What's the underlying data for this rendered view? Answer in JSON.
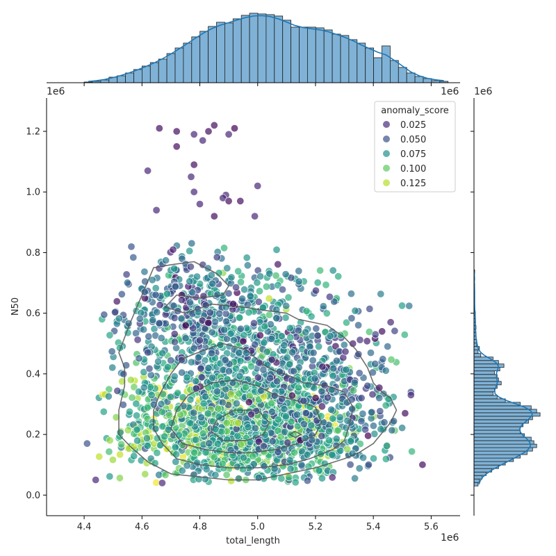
{
  "chart_data": {
    "type": "scatter",
    "x": {
      "label": "total_length",
      "offset_text": "1e6",
      "ticks": [
        4.4,
        4.6,
        4.8,
        5.0,
        5.2,
        5.4,
        5.6
      ],
      "tick_labels": [
        "4.4",
        "4.6",
        "4.8",
        "5.0",
        "5.2",
        "5.4",
        "5.6"
      ],
      "range": [
        4.27,
        5.7
      ]
    },
    "y": {
      "label": "N50",
      "offset_text": "1e6",
      "ticks": [
        0.0,
        0.2,
        0.4,
        0.6,
        0.8,
        1.0,
        1.2
      ],
      "tick_labels": [
        "0.0",
        "0.2",
        "0.4",
        "0.6",
        "0.8",
        "1.0",
        "1.2"
      ],
      "range": [
        -0.068,
        1.31
      ]
    },
    "marginal_x_offset_text": "1e6",
    "marginal_y_offset_text": "1e6",
    "legend": {
      "title": "anomaly_score",
      "placement": "top-right",
      "entries": [
        {
          "label": "0.025",
          "color": "#472d7b"
        },
        {
          "label": "0.050",
          "color": "#3b528b"
        },
        {
          "label": "0.075",
          "color": "#21918c"
        },
        {
          "label": "0.100",
          "color": "#5ec962"
        },
        {
          "label": "0.125",
          "color": "#b5de2b"
        }
      ]
    },
    "hue_range": [
      0.005,
      0.14
    ],
    "colors": {
      "hist_fill": "#7fb2d6",
      "hist_edge": "#1f1f1f",
      "kde_line": "#1f77b4",
      "contour": "#555555"
    },
    "marginal_x_hist": {
      "bin_start": 4.4,
      "bin_width": 0.0286,
      "relative_heights": [
        0.01,
        0.02,
        0.04,
        0.08,
        0.1,
        0.14,
        0.19,
        0.24,
        0.29,
        0.34,
        0.42,
        0.5,
        0.57,
        0.66,
        0.74,
        0.81,
        0.87,
        0.86,
        0.92,
        0.97,
        1.0,
        0.99,
        0.98,
        0.96,
        0.9,
        0.8,
        0.8,
        0.8,
        0.79,
        0.76,
        0.7,
        0.68,
        0.62,
        0.57,
        0.5,
        0.36,
        0.53,
        0.32,
        0.22,
        0.14,
        0.09,
        0.06,
        0.03,
        0.02
      ]
    },
    "marginal_y_hist": {
      "bin_start": 0.03,
      "bin_width": 0.0115,
      "relative_heights": [
        0.06,
        0.08,
        0.12,
        0.18,
        0.26,
        0.36,
        0.46,
        0.58,
        0.68,
        0.78,
        0.86,
        0.92,
        0.88,
        0.84,
        0.74,
        0.68,
        0.68,
        0.72,
        0.8,
        0.86,
        0.97,
        0.92,
        0.84,
        0.68,
        0.46,
        0.34,
        0.28,
        0.3,
        0.34,
        0.4,
        0.36,
        0.34,
        0.3,
        0.38,
        0.44,
        0.36,
        0.28,
        0.1,
        0.06,
        0.08,
        0.04,
        0.04,
        0.03,
        0.03,
        0.02,
        0.03,
        0.02,
        0.02,
        0.02,
        0.02,
        0.01,
        0.01,
        0.01,
        0.01,
        0.01,
        0.01,
        0.01,
        0.01,
        0.0,
        0.01,
        0.0,
        0.01
      ]
    },
    "outlier_points": [
      {
        "x": 4.66,
        "y": 1.21,
        "s": 0.01
      },
      {
        "x": 4.72,
        "y": 1.2,
        "s": 0.01
      },
      {
        "x": 4.78,
        "y": 1.19,
        "s": 0.02
      },
      {
        "x": 4.81,
        "y": 1.17,
        "s": 0.02
      },
      {
        "x": 4.83,
        "y": 1.2,
        "s": 0.01
      },
      {
        "x": 4.85,
        "y": 1.22,
        "s": 0.01
      },
      {
        "x": 4.9,
        "y": 1.19,
        "s": 0.02
      },
      {
        "x": 4.92,
        "y": 1.21,
        "s": 0.005
      },
      {
        "x": 4.72,
        "y": 1.15,
        "s": 0.01
      },
      {
        "x": 4.62,
        "y": 1.07,
        "s": 0.02
      },
      {
        "x": 4.78,
        "y": 1.09,
        "s": 0.01
      },
      {
        "x": 4.77,
        "y": 1.05,
        "s": 0.02
      },
      {
        "x": 4.78,
        "y": 1.0,
        "s": 0.02
      },
      {
        "x": 4.89,
        "y": 0.99,
        "s": 0.02
      },
      {
        "x": 4.88,
        "y": 0.98,
        "s": 0.02
      },
      {
        "x": 4.9,
        "y": 0.97,
        "s": 0.01
      },
      {
        "x": 4.94,
        "y": 0.97,
        "s": 0.01
      },
      {
        "x": 5.0,
        "y": 1.02,
        "s": 0.02
      },
      {
        "x": 4.8,
        "y": 0.96,
        "s": 0.02
      },
      {
        "x": 4.85,
        "y": 0.92,
        "s": 0.01
      },
      {
        "x": 4.99,
        "y": 0.92,
        "s": 0.02
      },
      {
        "x": 4.65,
        "y": 0.94,
        "s": 0.02
      },
      {
        "x": 4.44,
        "y": 0.05,
        "s": 0.02
      },
      {
        "x": 4.41,
        "y": 0.17,
        "s": 0.04
      },
      {
        "x": 5.57,
        "y": 0.1,
        "s": 0.01
      },
      {
        "x": 5.53,
        "y": 0.34,
        "s": 0.04
      },
      {
        "x": 5.53,
        "y": 0.33,
        "s": 0.02
      },
      {
        "x": 5.51,
        "y": 0.27,
        "s": 0.01
      },
      {
        "x": 5.46,
        "y": 0.57,
        "s": 0.02
      },
      {
        "x": 5.43,
        "y": 0.54,
        "s": 0.01
      },
      {
        "x": 4.67,
        "y": 0.04,
        "s": 0.02
      }
    ],
    "clusters": [
      {
        "cx": 4.92,
        "cy": 0.23,
        "sx": 0.19,
        "sy": 0.09,
        "n": 850,
        "s": 0.105
      },
      {
        "cx": 4.95,
        "cy": 0.45,
        "sx": 0.2,
        "sy": 0.15,
        "n": 750,
        "s": 0.07
      },
      {
        "cx": 5.02,
        "cy": 0.18,
        "sx": 0.2,
        "sy": 0.08,
        "n": 400,
        "s": 0.075
      },
      {
        "cx": 4.75,
        "cy": 0.62,
        "sx": 0.14,
        "sy": 0.1,
        "n": 250,
        "s": 0.045
      },
      {
        "cx": 5.22,
        "cy": 0.35,
        "sx": 0.12,
        "sy": 0.12,
        "n": 250,
        "s": 0.05
      }
    ],
    "contours": [
      [
        [
          4.56,
          0.57
        ],
        [
          4.6,
          0.66
        ],
        [
          4.64,
          0.75
        ],
        [
          4.7,
          0.76
        ],
        [
          4.78,
          0.77
        ],
        [
          4.86,
          0.73
        ],
        [
          4.9,
          0.69
        ],
        [
          4.88,
          0.66
        ],
        [
          4.8,
          0.65
        ],
        [
          4.72,
          0.66
        ],
        [
          4.68,
          0.62
        ],
        [
          4.75,
          0.6
        ],
        [
          4.84,
          0.63
        ],
        [
          4.95,
          0.62
        ],
        [
          5.02,
          0.61
        ],
        [
          5.1,
          0.6
        ],
        [
          5.14,
          0.58
        ],
        [
          5.24,
          0.56
        ],
        [
          5.3,
          0.52
        ],
        [
          5.34,
          0.48
        ],
        [
          5.38,
          0.42
        ],
        [
          5.4,
          0.37
        ],
        [
          5.43,
          0.34
        ],
        [
          5.46,
          0.32
        ],
        [
          5.48,
          0.28
        ],
        [
          5.46,
          0.24
        ],
        [
          5.4,
          0.17
        ],
        [
          5.35,
          0.14
        ],
        [
          5.3,
          0.12
        ],
        [
          5.2,
          0.09
        ],
        [
          5.1,
          0.07
        ],
        [
          5.0,
          0.05
        ],
        [
          4.9,
          0.05
        ],
        [
          4.8,
          0.06
        ],
        [
          4.7,
          0.07
        ],
        [
          4.62,
          0.11
        ],
        [
          4.56,
          0.16
        ],
        [
          4.52,
          0.2
        ],
        [
          4.52,
          0.28
        ],
        [
          4.54,
          0.36
        ],
        [
          4.54,
          0.42
        ],
        [
          4.52,
          0.47
        ],
        [
          4.54,
          0.52
        ],
        [
          4.56,
          0.57
        ]
      ],
      [
        [
          4.64,
          0.28
        ],
        [
          4.66,
          0.33
        ],
        [
          4.7,
          0.4
        ],
        [
          4.74,
          0.45
        ],
        [
          4.82,
          0.48
        ],
        [
          4.88,
          0.5
        ],
        [
          4.96,
          0.48
        ],
        [
          5.02,
          0.43
        ],
        [
          5.06,
          0.41
        ],
        [
          5.12,
          0.39
        ],
        [
          5.16,
          0.37
        ],
        [
          5.24,
          0.36
        ],
        [
          5.3,
          0.34
        ],
        [
          5.33,
          0.29
        ],
        [
          5.32,
          0.24
        ],
        [
          5.3,
          0.18
        ],
        [
          5.26,
          0.15
        ],
        [
          5.18,
          0.12
        ],
        [
          5.1,
          0.1
        ],
        [
          5.0,
          0.09
        ],
        [
          4.9,
          0.09
        ],
        [
          4.8,
          0.1
        ],
        [
          4.72,
          0.12
        ],
        [
          4.67,
          0.17
        ],
        [
          4.64,
          0.22
        ],
        [
          4.64,
          0.28
        ]
      ],
      [
        [
          4.7,
          0.22
        ],
        [
          4.72,
          0.28
        ],
        [
          4.76,
          0.33
        ],
        [
          4.84,
          0.37
        ],
        [
          4.92,
          0.38
        ],
        [
          5.0,
          0.36
        ],
        [
          5.06,
          0.33
        ],
        [
          5.14,
          0.31
        ],
        [
          5.2,
          0.29
        ],
        [
          5.22,
          0.24
        ],
        [
          5.2,
          0.2
        ],
        [
          5.14,
          0.17
        ],
        [
          5.06,
          0.15
        ],
        [
          4.98,
          0.14
        ],
        [
          4.9,
          0.14
        ],
        [
          4.82,
          0.15
        ],
        [
          4.74,
          0.17
        ],
        [
          4.7,
          0.22
        ]
      ],
      [
        [
          4.84,
          0.21
        ],
        [
          4.86,
          0.25
        ],
        [
          4.92,
          0.28
        ],
        [
          5.0,
          0.28
        ],
        [
          5.04,
          0.24
        ],
        [
          5.02,
          0.2
        ],
        [
          4.96,
          0.18
        ],
        [
          4.88,
          0.18
        ],
        [
          4.84,
          0.21
        ]
      ],
      [
        [
          5.11,
          0.2
        ],
        [
          5.13,
          0.21
        ],
        [
          5.15,
          0.2
        ],
        [
          5.13,
          0.19
        ],
        [
          5.11,
          0.2
        ]
      ]
    ]
  }
}
